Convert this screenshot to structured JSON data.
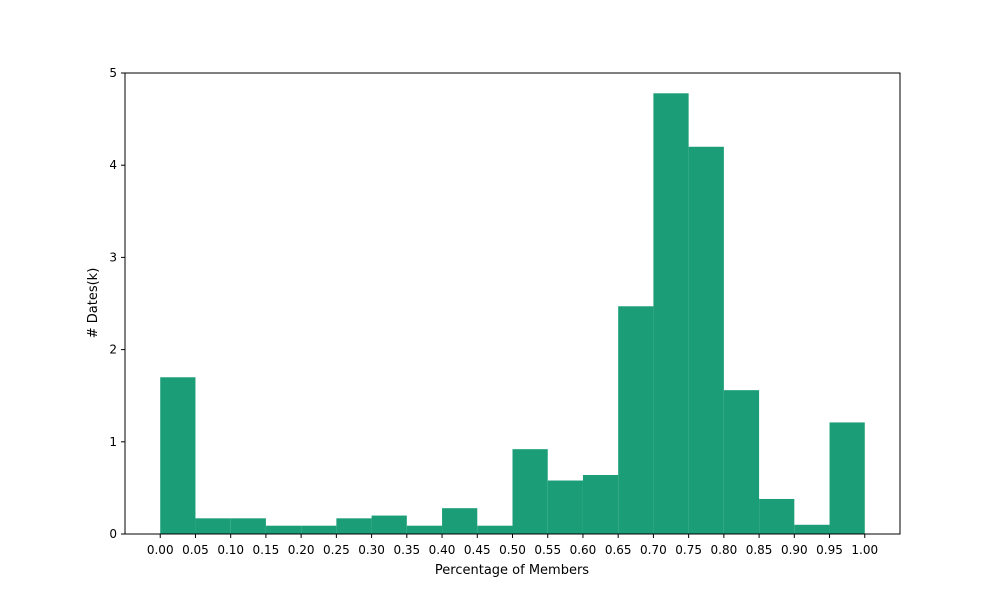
{
  "chart_data": {
    "type": "bar",
    "title": "",
    "xlabel": "Percentage of Members",
    "ylabel": "# Dates(k)",
    "bin_edges": [
      0.0,
      0.05,
      0.1,
      0.15,
      0.2,
      0.25,
      0.3,
      0.35,
      0.4,
      0.45,
      0.5,
      0.55,
      0.6,
      0.65,
      0.7,
      0.75,
      0.8,
      0.85,
      0.9,
      0.95,
      1.0
    ],
    "x_tick_labels": [
      "0.00",
      "0.05",
      "0.10",
      "0.15",
      "0.20",
      "0.25",
      "0.30",
      "0.35",
      "0.40",
      "0.45",
      "0.50",
      "0.55",
      "0.60",
      "0.65",
      "0.70",
      "0.75",
      "0.80",
      "0.85",
      "0.90",
      "0.95",
      "1.00"
    ],
    "values": [
      1.7,
      0.17,
      0.17,
      0.09,
      0.09,
      0.17,
      0.2,
      0.09,
      0.28,
      0.09,
      0.92,
      0.58,
      0.64,
      2.47,
      4.78,
      4.2,
      1.56,
      0.38,
      0.1,
      1.21
    ],
    "y_ticks": [
      0,
      1,
      2,
      3,
      4,
      5
    ],
    "xlim": [
      -0.05,
      1.05
    ],
    "ylim": [
      0,
      5
    ],
    "grid": false,
    "bar_color": "#1b9e77"
  }
}
